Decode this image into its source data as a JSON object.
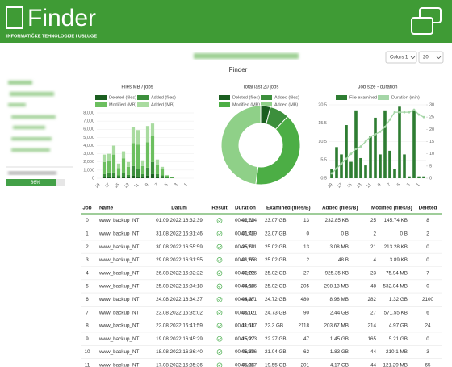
{
  "header": {
    "logo": "Finder",
    "tagline": "INFORMATIČKE TEHNOLOGIJE I USLUGE"
  },
  "page_title": "Finder",
  "controls": {
    "color_scheme": "Colors 1",
    "page_size": "20"
  },
  "sidebar": {
    "progress": 86,
    "progress_label": "86%"
  },
  "charts": [
    {
      "type": "stacked-bar",
      "title": "Files MB / jobs",
      "categories": [
        "19",
        null,
        "17",
        null,
        "15",
        null,
        "13",
        null,
        "11",
        null,
        "9",
        null,
        "7",
        null,
        "5",
        null,
        "3",
        null,
        "1",
        null
      ],
      "series": [
        {
          "name": "Deleted (files)",
          "color": "#1b5e20",
          "values": [
            0,
            100,
            200,
            100,
            50,
            150,
            100,
            300,
            200,
            100,
            300,
            500,
            100,
            50,
            0,
            0,
            0,
            0,
            0,
            0
          ]
        },
        {
          "name": "Added (files)",
          "color": "#3c8f3c",
          "values": [
            0,
            400,
            500,
            600,
            300,
            500,
            300,
            1200,
            900,
            400,
            1000,
            1500,
            400,
            300,
            100,
            50,
            0,
            0,
            0,
            0
          ]
        },
        {
          "name": "Modified (MB)",
          "color": "#6cbf5f",
          "values": [
            0,
            1500,
            1500,
            2200,
            900,
            1800,
            1000,
            2800,
            3000,
            1000,
            3100,
            3200,
            1200,
            800,
            200,
            50,
            0,
            0,
            0,
            0
          ]
        },
        {
          "name": "Added (MB)",
          "color": "#a9dba0",
          "values": [
            0,
            900,
            800,
            1100,
            550,
            850,
            600,
            2000,
            1800,
            700,
            2000,
            1500,
            600,
            250,
            100,
            0,
            0,
            0,
            0,
            0
          ]
        }
      ],
      "ylim": [
        0,
        8000
      ],
      "yticks": [
        0,
        {
          "value": 1000,
          "label": "1,000"
        },
        {
          "value": 2000,
          "label": "2,000"
        },
        {
          "value": 3000,
          "label": "3,000"
        },
        {
          "value": 4000,
          "label": "4,000"
        },
        {
          "value": 5000,
          "label": "5,000"
        },
        {
          "value": 6000,
          "label": "6,000"
        },
        {
          "value": 7000,
          "label": "7,000"
        },
        {
          "value": 8000,
          "label": "8,000"
        }
      ],
      "grid": true
    },
    {
      "type": "doughnut",
      "title": "Total last 20 jobs",
      "categories": [
        "Deleted (files)",
        "Added (files)",
        "Modified (MB)",
        "Added (MB)"
      ],
      "colors": [
        "#1b5e20",
        "#3c8f3c",
        "#4cae45",
        "#8fd088"
      ],
      "values": [
        4,
        8,
        40,
        48
      ]
    },
    {
      "type": "bar-line",
      "title": "Job size - duration",
      "categories": [
        "19",
        null,
        "17",
        null,
        "15",
        null,
        "13",
        null,
        "11",
        null,
        "9",
        null,
        "7",
        null,
        "5",
        null,
        "3",
        null,
        "1",
        null
      ],
      "series": [
        {
          "name": "File examined (GB)",
          "color": "#2e7d32",
          "type": "bar",
          "values": [
            3,
            9,
            7,
            15,
            5,
            19,
            6,
            4,
            12,
            17,
            7,
            19,
            8,
            3,
            20,
            7,
            1,
            19,
            1,
            1
          ]
        },
        {
          "name": "Duration (min)",
          "color": "#a5d6a7",
          "type": "line",
          "axis": "y2",
          "values": [
            2,
            4,
            6,
            8,
            10,
            12,
            13,
            15,
            17,
            18,
            19,
            21,
            24,
            27,
            27,
            27,
            27,
            28,
            26,
            25
          ]
        }
      ],
      "ylim": [
        0.5,
        20.5
      ],
      "yticks": [
        0.5,
        5.5,
        10.5,
        15.5,
        20.5
      ],
      "y2lim": [
        0,
        30
      ],
      "y2ticks": [
        0,
        5,
        10,
        15,
        20,
        25,
        30
      ],
      "grid": true
    }
  ],
  "table": {
    "columns": [
      "Job",
      "Name",
      "Datum",
      "Result",
      "Duration",
      "Examined (files/B)",
      "Added (files/B)",
      "Modified (files/B)",
      "Deleted"
    ],
    "rows": [
      [
        0,
        "www_backup_NT",
        "01.09.2022 16:32:39",
        "00:02:39",
        "46,724",
        "23.07 GB",
        13,
        "232.85 KB",
        25,
        "145.74 KB",
        8
      ],
      [
        1,
        "www_backup_NT",
        "31.08.2022 16:31:46",
        "00:01:46",
        "46,719",
        "23.07 GB",
        0,
        "0 B",
        2,
        "0 B",
        2
      ],
      [
        2,
        "www_backup_NT",
        "30.08.2022 16:55:59",
        "00:25:59",
        "46,721",
        "25.02 GB",
        13,
        "3.08 MB",
        21,
        "213.28 KB",
        0
      ],
      [
        3,
        "www_backup_NT",
        "29.08.2022 16:31:55",
        "00:01:55",
        "46,708",
        "25.02 GB",
        2,
        "48 B",
        4,
        "3.89 KB",
        0
      ],
      [
        4,
        "www_backup_NT",
        "26.08.2022 16:32:22",
        "00:02:22",
        "46,706",
        "25.02 GB",
        27,
        "925.35 KB",
        23,
        "75.94 MB",
        7
      ],
      [
        5,
        "www_backup_NT",
        "25.08.2022 16:34:18",
        "00:04:18",
        "46,686",
        "25.02 GB",
        205,
        "298.13 MB",
        48,
        "532.04 MB",
        0
      ],
      [
        6,
        "www_backup_NT",
        "24.08.2022 16:34:37",
        "00:04:37",
        "46,481",
        "24.72 GB",
        480,
        "8.96 MB",
        282,
        "1.32 GB",
        2100
      ],
      [
        7,
        "www_backup_NT",
        "23.08.2022 16:35:02",
        "00:05:02",
        "48,101",
        "24.73 GB",
        90,
        "2.44 GB",
        27,
        "571.55 KB",
        6
      ],
      [
        8,
        "www_backup_NT",
        "22.08.2022 16:41:59",
        "00:11:58",
        "48,017",
        "22.3 GB",
        2118,
        "203.67 MB",
        214,
        "4.97 GB",
        24
      ],
      [
        9,
        "www_backup_NT",
        "19.08.2022 16:45:29",
        "00:15:27",
        "45,923",
        "22.27 GB",
        47,
        "1.45 GB",
        165,
        "5.21 GB",
        0
      ],
      [
        10,
        "www_backup_NT",
        "18.08.2022 16:36:40",
        "00:06:39",
        "45,876",
        "21.04 GB",
        62,
        "1.83 GB",
        44,
        "210.1 MB",
        3
      ],
      [
        11,
        "www_backup_NT",
        "17.08.2022 16:35:36",
        "00:05:35",
        "45,817",
        "19.55 GB",
        201,
        "4.17 GB",
        44,
        "121.29 MB",
        65
      ]
    ]
  }
}
